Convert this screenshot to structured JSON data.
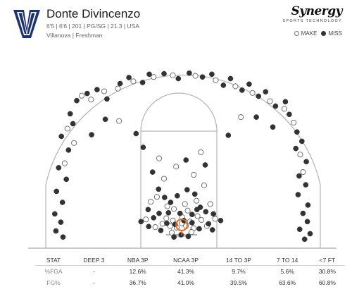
{
  "player": {
    "name": "Donte Divincenzo",
    "details": "6'5 | 6'6 | 201 | PG/SG | 21.3 | USA",
    "team": "Villanova | Freshman",
    "logo_letter": "V"
  },
  "brand": {
    "name": "Synergy",
    "tagline": "SPORTS TECHNOLOGY"
  },
  "legend": {
    "make_label": "MAKE",
    "miss_label": "MISS"
  },
  "colors": {
    "make_fill": "#ffffff",
    "make_stroke": "#666666",
    "miss_fill": "#333333",
    "court_line": "#b3b3b3",
    "hoop": "#e06a1e",
    "logo_navy": "#1d3370"
  },
  "stats_table": {
    "headers": [
      "STAT",
      "DEEP 3",
      "NBA 3P",
      "NCAA 3P",
      "14 TO 3P",
      "7 TO 14",
      "<7 FT"
    ],
    "rows": [
      {
        "label": "%FGA",
        "values": [
          "-",
          "12.6%",
          "41.3%",
          "9.7%",
          "5.6%",
          "30.8%"
        ]
      },
      {
        "label": "FG%",
        "values": [
          "-",
          "36.7%",
          "41.0%",
          "39.5%",
          "63.6%",
          "60.8%"
        ]
      }
    ]
  },
  "chart_data": {
    "type": "scatter",
    "xlim": [
      -25,
      25
    ],
    "ylim": [
      -4,
      31
    ],
    "series": [
      {
        "name": "MAKE",
        "points": [
          [
            -18.2,
            23.5
          ],
          [
            -16.5,
            22.8
          ],
          [
            -14.1,
            24.3
          ],
          [
            -11.6,
            24.8
          ],
          [
            -8.8,
            26.1
          ],
          [
            -5.1,
            26.9
          ],
          [
            -1.6,
            27.2
          ],
          [
            2.5,
            27.1
          ],
          [
            6.2,
            26.3
          ],
          [
            9.8,
            25.2
          ],
          [
            12.9,
            24.0
          ],
          [
            16.1,
            22.5
          ],
          [
            18.7,
            21.1
          ],
          [
            20.4,
            18.6
          ],
          [
            -20.8,
            17.5
          ],
          [
            -19.6,
            14.9
          ],
          [
            -21.3,
            11.2
          ],
          [
            21.6,
            12.8
          ],
          [
            22.1,
            9.6
          ],
          [
            -4.1,
            12.1
          ],
          [
            3.5,
            13.2
          ],
          [
            -1.0,
            10.6
          ],
          [
            2.2,
            9.1
          ],
          [
            -3.2,
            8.4
          ],
          [
            4.1,
            7.2
          ],
          [
            -4.5,
            5.1
          ],
          [
            -2.8,
            1.2
          ],
          [
            -1.6,
            0.8
          ],
          [
            0.1,
            1.4
          ],
          [
            1.5,
            0.6
          ],
          [
            2.9,
            1.6
          ],
          [
            -3.5,
            0.2
          ],
          [
            3.6,
            0.9
          ],
          [
            0.8,
            -0.2
          ],
          [
            -0.9,
            -0.5
          ],
          [
            2.2,
            -0.6
          ],
          [
            -2.1,
            -0.2
          ],
          [
            1.1,
            2.6
          ],
          [
            -1.4,
            2.9
          ],
          [
            0.6,
            3.8
          ],
          [
            -5.6,
            4.2
          ],
          [
            5.2,
            3.8
          ],
          [
            -6.5,
            1.0
          ],
          [
            6.1,
            1.1
          ],
          [
            -4.8,
            -0.4
          ],
          [
            4.6,
            -0.2
          ],
          [
            -1.8,
            -1.4
          ],
          [
            1.8,
            -1.3
          ],
          [
            0.0,
            0.3
          ],
          [
            -2.6,
            3.4
          ],
          [
            2.7,
            4.4
          ],
          [
            -11.4,
            18.9
          ],
          [
            10.8,
            19.6
          ]
        ]
      },
      {
        "name": "MISS",
        "points": [
          [
            -19.1,
            22.6
          ],
          [
            -17.2,
            23.9
          ],
          [
            -15.4,
            24.6
          ],
          [
            -13.6,
            22.9
          ],
          [
            -11.2,
            25.7
          ],
          [
            -9.6,
            26.8
          ],
          [
            -7.1,
            25.9
          ],
          [
            -5.9,
            27.4
          ],
          [
            -3.2,
            27.5
          ],
          [
            -0.6,
            26.6
          ],
          [
            1.4,
            27.6
          ],
          [
            3.8,
            26.9
          ],
          [
            5.5,
            27.4
          ],
          [
            7.6,
            25.4
          ],
          [
            8.9,
            26.6
          ],
          [
            11.0,
            24.5
          ],
          [
            12.3,
            25.6
          ],
          [
            14.0,
            23.4
          ],
          [
            15.3,
            24.2
          ],
          [
            17.1,
            21.6
          ],
          [
            18.9,
            22.4
          ],
          [
            19.6,
            20.1
          ],
          [
            -20.3,
            20.2
          ],
          [
            -19.8,
            18.4
          ],
          [
            -21.9,
            16.1
          ],
          [
            -20.6,
            13.6
          ],
          [
            -22.4,
            10.4
          ],
          [
            -21.0,
            8.3
          ],
          [
            -22.8,
            6.1
          ],
          [
            -21.7,
            4.1
          ],
          [
            -23.1,
            2.0
          ],
          [
            -22.0,
            0.5
          ],
          [
            -22.9,
            -1.1
          ],
          [
            -21.6,
            -2.2
          ],
          [
            21.0,
            16.9
          ],
          [
            21.9,
            15.2
          ],
          [
            20.8,
            13.9
          ],
          [
            22.7,
            11.5
          ],
          [
            21.4,
            8.9
          ],
          [
            22.6,
            7.3
          ],
          [
            21.2,
            5.5
          ],
          [
            23.0,
            3.6
          ],
          [
            22.1,
            2.1
          ],
          [
            22.9,
            0.6
          ],
          [
            21.5,
            -0.8
          ],
          [
            23.4,
            -1.6
          ],
          [
            22.4,
            -2.6
          ],
          [
            -7.0,
            14.1
          ],
          [
            -5.3,
            9.6
          ],
          [
            -4.2,
            6.5
          ],
          [
            -3.1,
            5.0
          ],
          [
            -2.0,
            4.1
          ],
          [
            -0.8,
            5.3
          ],
          [
            1.0,
            6.4
          ],
          [
            2.4,
            5.6
          ],
          [
            3.4,
            3.2
          ],
          [
            -6.1,
            2.8
          ],
          [
            -4.1,
            2.1
          ],
          [
            -2.4,
            2.2
          ],
          [
            -0.3,
            2.1
          ],
          [
            1.9,
            1.9
          ],
          [
            4.4,
            2.4
          ],
          [
            5.8,
            2.0
          ],
          [
            7.1,
            0.8
          ],
          [
            -7.4,
            0.6
          ],
          [
            -6.0,
            -0.3
          ],
          [
            -3.8,
            -1.0
          ],
          [
            -2.7,
            0.3
          ],
          [
            -1.2,
            0.1
          ],
          [
            0.4,
            0.8
          ],
          [
            1.9,
            0.4
          ],
          [
            3.2,
            -0.7
          ],
          [
            4.9,
            0.2
          ],
          [
            5.6,
            -0.9
          ],
          [
            -5.1,
            1.3
          ],
          [
            2.8,
            2.8
          ],
          [
            -0.1,
            -1.8
          ],
          [
            1.2,
            -2.1
          ],
          [
            -1.4,
            -2.2
          ],
          [
            -8.3,
            16.6
          ],
          [
            8.5,
            16.3
          ],
          [
            -13.9,
            19.2
          ],
          [
            13.6,
            19.6
          ],
          [
            -16.4,
            16.4
          ],
          [
            16.6,
            17.8
          ],
          [
            0.8,
            11.8
          ],
          [
            4.3,
            10.9
          ]
        ]
      }
    ]
  }
}
